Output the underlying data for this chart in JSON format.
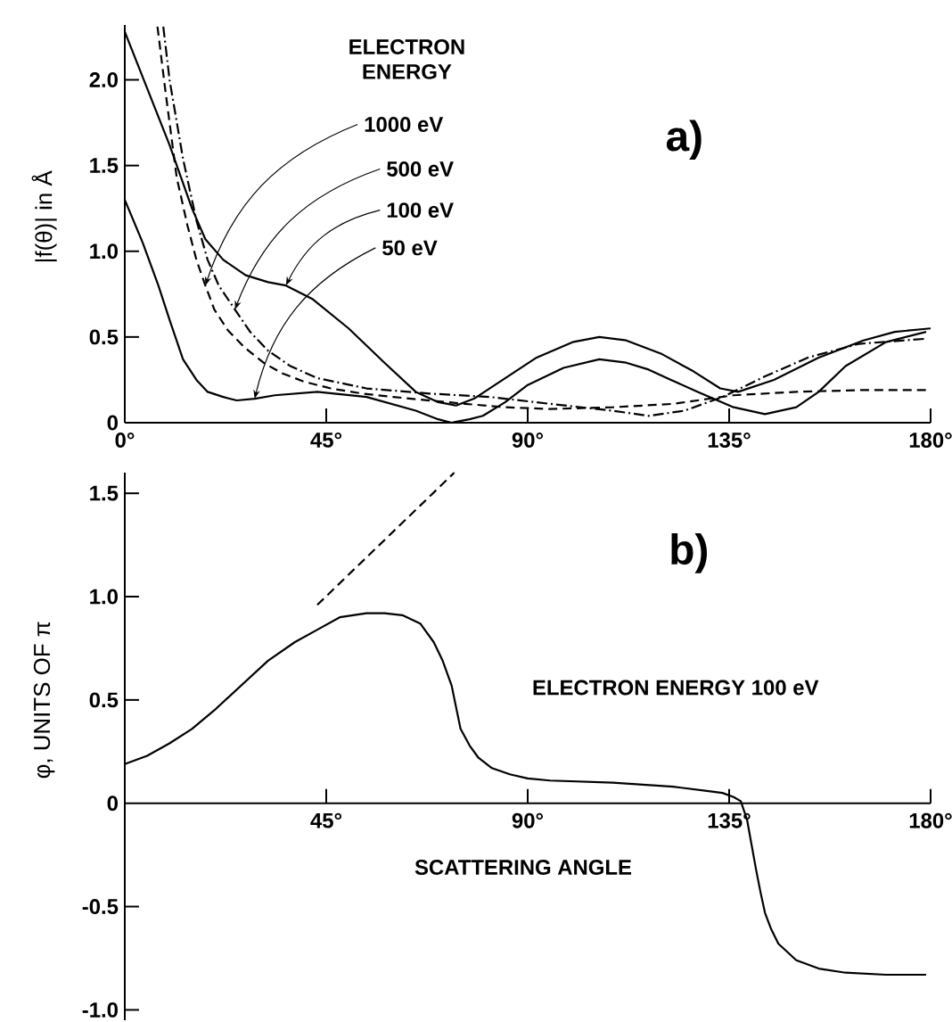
{
  "chart_data": [
    {
      "type": "line",
      "legend_title": "ELECTRON ENERGY",
      "ylabel": "|f(θ)| in Å",
      "annotations": [
        "a)",
        {
          "text": "1000 eV",
          "x": 18,
          "y": 0.8
        },
        {
          "text": "500 eV",
          "x": 24.6,
          "y": 0.66
        },
        {
          "text": "100 eV",
          "x": 36,
          "y": 0.8
        },
        {
          "text": "50 eV",
          "x": 29,
          "y": 0.14
        }
      ],
      "xlim": [
        0,
        180
      ],
      "ylim": [
        0,
        2.32
      ],
      "xticks": [
        {
          "value": 0,
          "label": "0°"
        },
        {
          "value": 45,
          "label": "45°"
        },
        {
          "value": 90,
          "label": "90°"
        },
        {
          "value": 135,
          "label": "135°"
        },
        {
          "value": 180,
          "label": "180°"
        }
      ],
      "yticks": [
        0,
        0.5,
        {
          "value": 1.0,
          "label": "1.0"
        },
        1.5,
        {
          "value": 2.0,
          "label": "2.0"
        }
      ],
      "series": [
        {
          "color": "#000000",
          "line_style": "dashed",
          "x": [
            7.3,
            9,
            11.6,
            14,
            16,
            18,
            20,
            23,
            26.7,
            31,
            35,
            40,
            46,
            53,
            60,
            68,
            76,
            85,
            95,
            109,
            122.5,
            136,
            150,
            164,
            180
          ],
          "values": [
            2.31,
            1.95,
            1.43,
            1.15,
            0.95,
            0.8,
            0.66,
            0.54,
            0.44,
            0.35,
            0.29,
            0.24,
            0.2,
            0.17,
            0.15,
            0.13,
            0.11,
            0.09,
            0.08,
            0.09,
            0.11,
            0.16,
            0.18,
            0.19,
            0.19
          ]
        },
        {
          "color": "#000000",
          "line_style": "dashdot",
          "x": [
            8.6,
            10,
            13,
            16,
            18.5,
            21,
            24.6,
            28,
            32,
            37,
            43,
            54,
            68,
            81.5,
            95,
            109,
            117,
            125,
            133.5,
            143,
            152.6,
            164,
            179
          ],
          "values": [
            2.31,
            2.0,
            1.54,
            1.18,
            0.95,
            0.8,
            0.66,
            0.53,
            0.42,
            0.33,
            0.26,
            0.2,
            0.17,
            0.15,
            0.11,
            0.07,
            0.04,
            0.07,
            0.15,
            0.27,
            0.38,
            0.46,
            0.49
          ]
        },
        {
          "color": "#000000",
          "line_style": "solid",
          "x": [
            0,
            5,
            10,
            15,
            18,
            22,
            27,
            32,
            34,
            36,
            42,
            50,
            58,
            65,
            70,
            74,
            78,
            85,
            92,
            100,
            106,
            112,
            120,
            127,
            133,
            137,
            145,
            155,
            165,
            172,
            180
          ],
          "values": [
            2.28,
            1.95,
            1.62,
            1.25,
            1.07,
            0.95,
            0.86,
            0.82,
            0.81,
            0.8,
            0.72,
            0.55,
            0.35,
            0.18,
            0.12,
            0.1,
            0.14,
            0.26,
            0.38,
            0.47,
            0.5,
            0.48,
            0.4,
            0.3,
            0.2,
            0.18,
            0.25,
            0.38,
            0.48,
            0.53,
            0.55
          ]
        },
        {
          "color": "#000000",
          "line_style": "solid",
          "x": [
            0,
            4,
            7.5,
            10,
            13,
            16,
            18.5,
            22,
            25,
            29,
            33.5,
            43,
            54,
            65,
            70,
            73,
            77,
            80,
            85,
            90,
            98,
            106,
            112,
            117,
            122,
            128,
            136,
            143,
            150,
            155,
            161,
            170,
            179
          ],
          "values": [
            1.3,
            1.05,
            0.8,
            0.6,
            0.37,
            0.25,
            0.18,
            0.15,
            0.13,
            0.14,
            0.16,
            0.18,
            0.15,
            0.07,
            0.02,
            0.0,
            0.02,
            0.04,
            0.12,
            0.22,
            0.32,
            0.37,
            0.35,
            0.31,
            0.25,
            0.18,
            0.09,
            0.05,
            0.09,
            0.18,
            0.33,
            0.47,
            0.53
          ]
        }
      ]
    },
    {
      "type": "line",
      "xlabel": "SCATTERING ANGLE",
      "ylabel": "φ, UNITS OF π",
      "annotations": [
        "b)",
        "ELECTRON ENERGY 100 eV"
      ],
      "xlim": [
        0,
        180
      ],
      "ylim": [
        -1.05,
        1.6
      ],
      "xticks": [
        {
          "value": 45,
          "label": "45°"
        },
        {
          "value": 90,
          "label": "90°"
        },
        {
          "value": 135,
          "label": "135°"
        },
        {
          "value": 180,
          "label": "180°"
        }
      ],
      "yticks": [
        {
          "value": -1.0,
          "label": "-1.0"
        },
        -0.5,
        0,
        0.5,
        {
          "value": 1.0,
          "label": "1.0"
        },
        1.5
      ],
      "series": [
        {
          "color": "#000000",
          "line_style": "solid",
          "x": [
            0,
            5,
            10,
            15,
            20,
            26,
            32,
            38,
            43,
            48,
            54,
            58,
            62,
            66,
            69,
            71,
            73,
            75,
            77,
            79,
            82,
            86,
            90,
            95,
            109,
            122.5,
            130,
            133.5,
            136,
            137.6,
            139,
            140,
            141,
            142,
            143,
            144.4,
            146,
            150,
            155,
            161,
            170,
            179
          ],
          "values": [
            0.19,
            0.23,
            0.29,
            0.36,
            0.45,
            0.57,
            0.69,
            0.78,
            0.84,
            0.9,
            0.92,
            0.92,
            0.91,
            0.87,
            0.78,
            0.69,
            0.57,
            0.36,
            0.28,
            0.22,
            0.17,
            0.14,
            0.12,
            0.11,
            0.1,
            0.08,
            0.06,
            0.05,
            0.03,
            0.01,
            -0.08,
            -0.2,
            -0.32,
            -0.43,
            -0.53,
            -0.61,
            -0.68,
            -0.76,
            -0.8,
            -0.82,
            -0.83,
            -0.83
          ]
        },
        {
          "color": "#000000",
          "line_style": "dashed",
          "x": [
            43,
            73.6
          ],
          "values": [
            0.96,
            1.6
          ]
        }
      ]
    }
  ]
}
